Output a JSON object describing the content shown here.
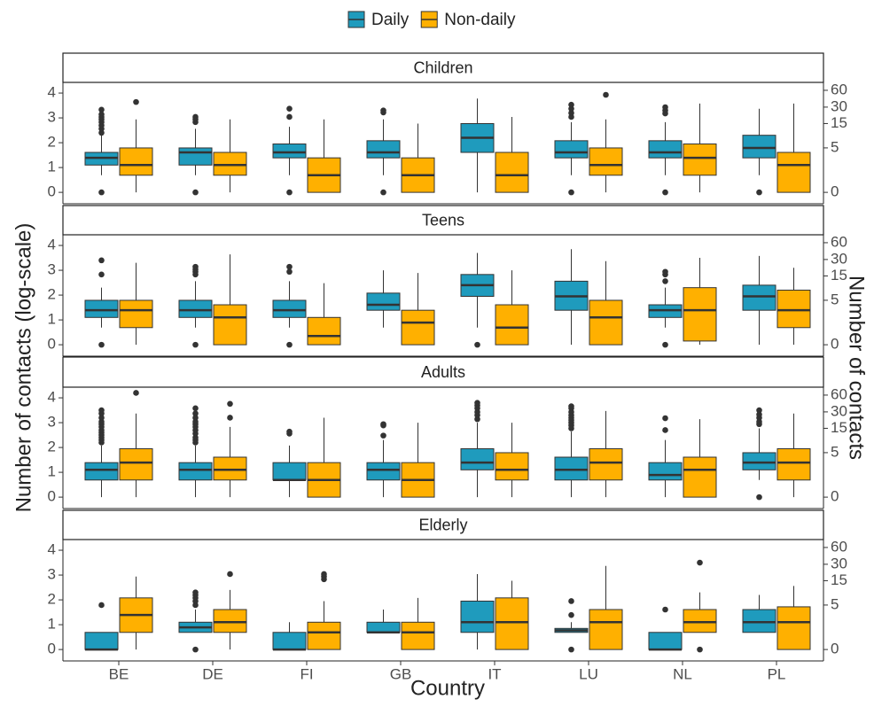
{
  "chart_data": {
    "type": "box",
    "xlabel": "Country",
    "ylabel": "Number of contacts (log-scale)",
    "y2label": "Number of contacts",
    "y2scale": "log1p",
    "legend": "top",
    "grid": false,
    "categories": [
      "BE",
      "DE",
      "FI",
      "GB",
      "IT",
      "LU",
      "NL",
      "PL"
    ],
    "series": [
      {
        "name": "Daily",
        "color": "#1f9bbd"
      },
      {
        "name": "Non-daily",
        "color": "#ffb000"
      }
    ],
    "ylim": [
      -0.46,
      4.43
    ],
    "yticks": [
      0,
      1,
      2,
      3,
      4
    ],
    "y2ticks": [
      0,
      5,
      15,
      30,
      60
    ],
    "facets": [
      {
        "title": "Children",
        "series": [
          {
            "values": [
              {
                "low": 0.69,
                "q1": 1.1,
                "med": 1.39,
                "q3": 1.61,
                "high": 2.3,
                "outliers": [
                  0,
                  2.4,
                  2.56,
                  2.7,
                  2.83,
                  2.94,
                  3.04,
                  3.14,
                  3.33
                ]
              },
              {
                "low": 0.69,
                "q1": 1.1,
                "med": 1.61,
                "q3": 1.79,
                "high": 2.56,
                "outliers": [
                  0,
                  2.83,
                  2.94,
                  3.04
                ]
              },
              {
                "low": 0.69,
                "q1": 1.39,
                "med": 1.61,
                "q3": 1.95,
                "high": 2.64,
                "outliers": [
                  0,
                  3.04,
                  3.37
                ]
              },
              {
                "low": 0.69,
                "q1": 1.39,
                "med": 1.61,
                "q3": 2.08,
                "high": 2.94,
                "outliers": [
                  0,
                  3.22,
                  3.3
                ]
              },
              {
                "low": 0,
                "q1": 1.61,
                "med": 2.2,
                "q3": 2.77,
                "high": 3.78,
                "outliers": []
              },
              {
                "low": 0.69,
                "q1": 1.39,
                "med": 1.61,
                "q3": 2.08,
                "high": 2.83,
                "outliers": [
                  0,
                  3.04,
                  3.2,
                  3.37,
                  3.53
                ]
              },
              {
                "low": 0.69,
                "q1": 1.39,
                "med": 1.61,
                "q3": 2.08,
                "high": 2.83,
                "outliers": [
                  0,
                  3.18,
                  3.3,
                  3.43
                ]
              },
              {
                "low": 0.69,
                "q1": 1.39,
                "med": 1.79,
                "q3": 2.3,
                "high": 3.37,
                "outliers": [
                  0
                ]
              }
            ]
          },
          {
            "values": [
              {
                "low": 0,
                "q1": 0.69,
                "med": 1.1,
                "q3": 1.79,
                "high": 2.94,
                "outliers": [
                  3.64
                ]
              },
              {
                "low": 0,
                "q1": 0.69,
                "med": 1.1,
                "q3": 1.61,
                "high": 2.94,
                "outliers": []
              },
              {
                "low": 0,
                "q1": 0,
                "med": 0.69,
                "q3": 1.39,
                "high": 2.94,
                "outliers": []
              },
              {
                "low": 0,
                "q1": 0,
                "med": 0.69,
                "q3": 1.39,
                "high": 2.77,
                "outliers": []
              },
              {
                "low": 0,
                "q1": 0,
                "med": 0.69,
                "q3": 1.61,
                "high": 3.04,
                "outliers": []
              },
              {
                "low": 0,
                "q1": 0.69,
                "med": 1.1,
                "q3": 1.79,
                "high": 2.94,
                "outliers": [
                  3.93
                ]
              },
              {
                "low": 0,
                "q1": 0.69,
                "med": 1.39,
                "q3": 1.95,
                "high": 3.58,
                "outliers": []
              },
              {
                "low": 0,
                "q1": 0,
                "med": 1.1,
                "q3": 1.61,
                "high": 3.58,
                "outliers": []
              }
            ]
          }
        ]
      },
      {
        "title": "Teens",
        "series": [
          {
            "values": [
              {
                "low": 0.69,
                "q1": 1.1,
                "med": 1.39,
                "q3": 1.79,
                "high": 2.3,
                "outliers": [
                  0,
                  2.83,
                  3.4
                ]
              },
              {
                "low": 0.69,
                "q1": 1.1,
                "med": 1.39,
                "q3": 1.79,
                "high": 2.56,
                "outliers": [
                  0,
                  2.83,
                  2.94,
                  3.04,
                  3.14
                ]
              },
              {
                "low": 0.69,
                "q1": 1.1,
                "med": 1.39,
                "q3": 1.79,
                "high": 2.56,
                "outliers": [
                  0,
                  2.94,
                  3.14
                ]
              },
              {
                "low": 0.69,
                "q1": 1.39,
                "med": 1.61,
                "q3": 2.08,
                "high": 3.0,
                "outliers": []
              },
              {
                "low": 0.69,
                "q1": 1.95,
                "med": 2.4,
                "q3": 2.83,
                "high": 3.7,
                "outliers": [
                  0
                ]
              },
              {
                "low": 0,
                "q1": 1.39,
                "med": 1.95,
                "q3": 2.56,
                "high": 3.85,
                "outliers": []
              },
              {
                "low": 0.69,
                "q1": 1.1,
                "med": 1.39,
                "q3": 1.61,
                "high": 2.3,
                "outliers": [
                  0,
                  2.56,
                  2.83,
                  2.94
                ]
              },
              {
                "low": 0,
                "q1": 1.39,
                "med": 1.95,
                "q3": 2.4,
                "high": 3.58,
                "outliers": []
              }
            ]
          },
          {
            "values": [
              {
                "low": 0,
                "q1": 0.69,
                "med": 1.39,
                "q3": 1.79,
                "high": 3.3,
                "outliers": []
              },
              {
                "low": 0,
                "q1": 0,
                "med": 1.1,
                "q3": 1.61,
                "high": 3.64,
                "outliers": []
              },
              {
                "low": 0,
                "q1": 0,
                "med": 0.35,
                "q3": 1.1,
                "high": 2.48,
                "outliers": []
              },
              {
                "low": 0,
                "q1": 0,
                "med": 0.89,
                "q3": 1.39,
                "high": 2.89,
                "outliers": []
              },
              {
                "low": 0,
                "q1": 0,
                "med": 0.69,
                "q3": 1.61,
                "high": 3.0,
                "outliers": []
              },
              {
                "low": 0,
                "q1": 0,
                "med": 1.1,
                "q3": 1.79,
                "high": 3.37,
                "outliers": []
              },
              {
                "low": 0,
                "q1": 0.15,
                "med": 1.39,
                "q3": 2.3,
                "high": 3.5,
                "outliers": []
              },
              {
                "low": 0,
                "q1": 0.69,
                "med": 1.39,
                "q3": 2.2,
                "high": 3.1,
                "outliers": []
              }
            ]
          }
        ]
      },
      {
        "title": "Adults",
        "series": [
          {
            "values": [
              {
                "low": 0,
                "q1": 0.69,
                "med": 1.1,
                "q3": 1.39,
                "high": 2.08,
                "outliers": [
                  2.2,
                  2.3,
                  2.4,
                  2.5,
                  2.6,
                  2.7,
                  2.83,
                  2.94,
                  3.04,
                  3.2,
                  3.37,
                  3.5
                ]
              },
              {
                "low": 0,
                "q1": 0.69,
                "med": 1.1,
                "q3": 1.39,
                "high": 2.08,
                "outliers": [
                  2.2,
                  2.3,
                  2.4,
                  2.56,
                  2.7,
                  2.83,
                  2.94,
                  3.04,
                  3.2,
                  3.37,
                  3.58
                ]
              },
              {
                "low": 0,
                "q1": 0.69,
                "med": 0.69,
                "q3": 1.39,
                "high": 2.08,
                "outliers": [
                  2.56,
                  2.64
                ]
              },
              {
                "low": 0,
                "q1": 0.69,
                "med": 1.1,
                "q3": 1.39,
                "high": 2.3,
                "outliers": [
                  2.48,
                  2.89,
                  2.94
                ]
              },
              {
                "low": 0,
                "q1": 1.1,
                "med": 1.39,
                "q3": 1.95,
                "high": 3.0,
                "outliers": [
                  3.14,
                  3.3,
                  3.43,
                  3.58,
                  3.7,
                  3.8
                ]
              },
              {
                "low": 0,
                "q1": 0.69,
                "med": 1.1,
                "q3": 1.61,
                "high": 2.64,
                "outliers": [
                  2.77,
                  2.89,
                  3.0,
                  3.1,
                  3.2,
                  3.3,
                  3.43,
                  3.58,
                  3.66
                ]
              },
              {
                "low": 0,
                "q1": 0.69,
                "med": 0.89,
                "q3": 1.39,
                "high": 2.3,
                "outliers": [
                  2.7,
                  3.18
                ]
              },
              {
                "low": 0.69,
                "q1": 1.1,
                "med": 1.39,
                "q3": 1.79,
                "high": 2.77,
                "outliers": [
                  0,
                  2.94,
                  3.04,
                  3.2,
                  3.33,
                  3.5
                ]
              }
            ]
          },
          {
            "values": [
              {
                "low": 0,
                "q1": 0.69,
                "med": 1.39,
                "q3": 1.95,
                "high": 3.37,
                "outliers": [
                  4.2
                ]
              },
              {
                "low": 0,
                "q1": 0.69,
                "med": 1.1,
                "q3": 1.61,
                "high": 2.83,
                "outliers": [
                  3.2,
                  3.76
                ]
              },
              {
                "low": 0,
                "q1": 0,
                "med": 0.69,
                "q3": 1.39,
                "high": 3.2,
                "outliers": []
              },
              {
                "low": 0,
                "q1": 0,
                "med": 0.69,
                "q3": 1.39,
                "high": 3.0,
                "outliers": []
              },
              {
                "low": 0,
                "q1": 0.69,
                "med": 1.1,
                "q3": 1.79,
                "high": 3.0,
                "outliers": []
              },
              {
                "low": 0,
                "q1": 0.69,
                "med": 1.39,
                "q3": 1.95,
                "high": 3.47,
                "outliers": []
              },
              {
                "low": 0,
                "q1": 0,
                "med": 1.1,
                "q3": 1.61,
                "high": 3.14,
                "outliers": []
              },
              {
                "low": 0,
                "q1": 0.69,
                "med": 1.39,
                "q3": 1.95,
                "high": 3.37,
                "outliers": []
              }
            ]
          }
        ]
      },
      {
        "title": "Elderly",
        "series": [
          {
            "values": [
              {
                "low": 0,
                "q1": 0,
                "med": 0,
                "q3": 0.69,
                "high": 0.69,
                "outliers": [
                  1.79
                ]
              },
              {
                "low": 0.69,
                "q1": 0.69,
                "med": 0.89,
                "q3": 1.1,
                "high": 1.61,
                "outliers": [
                  0,
                  1.79,
                  1.95,
                  2.08,
                  2.2,
                  2.3
                ]
              },
              {
                "low": 0,
                "q1": 0,
                "med": 0,
                "q3": 0.69,
                "high": 1.1,
                "outliers": []
              },
              {
                "low": 0.69,
                "q1": 0.69,
                "med": 0.69,
                "q3": 1.1,
                "high": 1.61,
                "outliers": []
              },
              {
                "low": 0,
                "q1": 0.69,
                "med": 1.1,
                "q3": 1.95,
                "high": 3.04,
                "outliers": []
              },
              {
                "low": 0.69,
                "q1": 0.69,
                "med": 0.77,
                "q3": 0.85,
                "high": 1.1,
                "outliers": [
                  0,
                  1.39,
                  1.95
                ]
              },
              {
                "low": 0,
                "q1": 0,
                "med": 0,
                "q3": 0.69,
                "high": 0.69,
                "outliers": [
                  1.61
                ]
              },
              {
                "low": 0.69,
                "q1": 0.69,
                "med": 1.1,
                "q3": 1.61,
                "high": 2.2,
                "outliers": []
              }
            ]
          },
          {
            "values": [
              {
                "low": 0,
                "q1": 0.69,
                "med": 1.39,
                "q3": 2.08,
                "high": 2.94,
                "outliers": []
              },
              {
                "low": 0,
                "q1": 0.69,
                "med": 1.1,
                "q3": 1.61,
                "high": 2.4,
                "outliers": [
                  3.04
                ]
              },
              {
                "low": 0,
                "q1": 0,
                "med": 0.69,
                "q3": 1.1,
                "high": 1.95,
                "outliers": [
                  2.83,
                  2.94,
                  3.04
                ]
              },
              {
                "low": 0,
                "q1": 0,
                "med": 0.69,
                "q3": 1.1,
                "high": 2.08,
                "outliers": []
              },
              {
                "low": 0,
                "q1": 0,
                "med": 1.1,
                "q3": 2.08,
                "high": 2.77,
                "outliers": []
              },
              {
                "low": 0,
                "q1": 0,
                "med": 1.1,
                "q3": 1.61,
                "high": 3.37,
                "outliers": []
              },
              {
                "low": 0.69,
                "q1": 0.69,
                "med": 1.1,
                "q3": 1.61,
                "high": 2.3,
                "outliers": [
                  0,
                  3.5
                ]
              },
              {
                "low": 0,
                "q1": 0,
                "med": 1.1,
                "q3": 1.72,
                "high": 2.56,
                "outliers": []
              }
            ]
          }
        ]
      }
    ]
  }
}
